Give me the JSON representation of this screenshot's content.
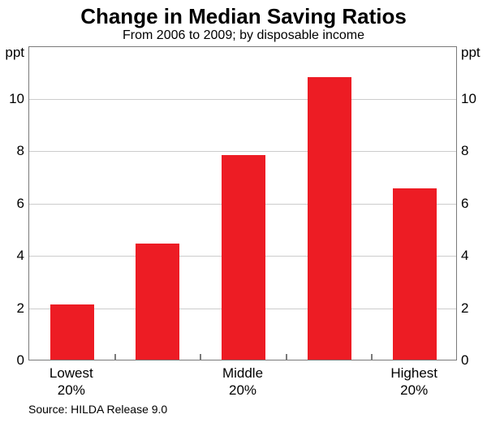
{
  "header": {
    "title": "Change in Median Saving Ratios",
    "subtitle": "From 2006 to 2009; by disposable income"
  },
  "footer": {
    "source": "Source: HILDA Release 9.0"
  },
  "chart_data": {
    "type": "bar",
    "title": "Change in Median Saving Ratios",
    "subtitle": "From 2006 to 2009; by disposable income",
    "unit_label_left": "ppt",
    "unit_label_right": "ppt",
    "ylim": [
      0,
      12
    ],
    "yticks": [
      0,
      2,
      4,
      6,
      8,
      10
    ],
    "gridlines": [
      2,
      4,
      6,
      8,
      10
    ],
    "grid": true,
    "legend": "none",
    "n_bars": 5,
    "values": [
      2.1,
      4.45,
      7.8,
      10.8,
      6.55
    ],
    "category_labels": [
      {
        "slot": 0,
        "lines": [
          "Lowest",
          "20%"
        ]
      },
      {
        "slot": 2,
        "lines": [
          "Middle",
          "20%"
        ]
      },
      {
        "slot": 4,
        "lines": [
          "Highest",
          "20%"
        ]
      }
    ],
    "colors": {
      "bar": "#ED1C24",
      "gridline": "#cccccc",
      "frame": "#7a7a7a",
      "text": "#000000"
    },
    "source": "Source: HILDA Release 9.0"
  }
}
